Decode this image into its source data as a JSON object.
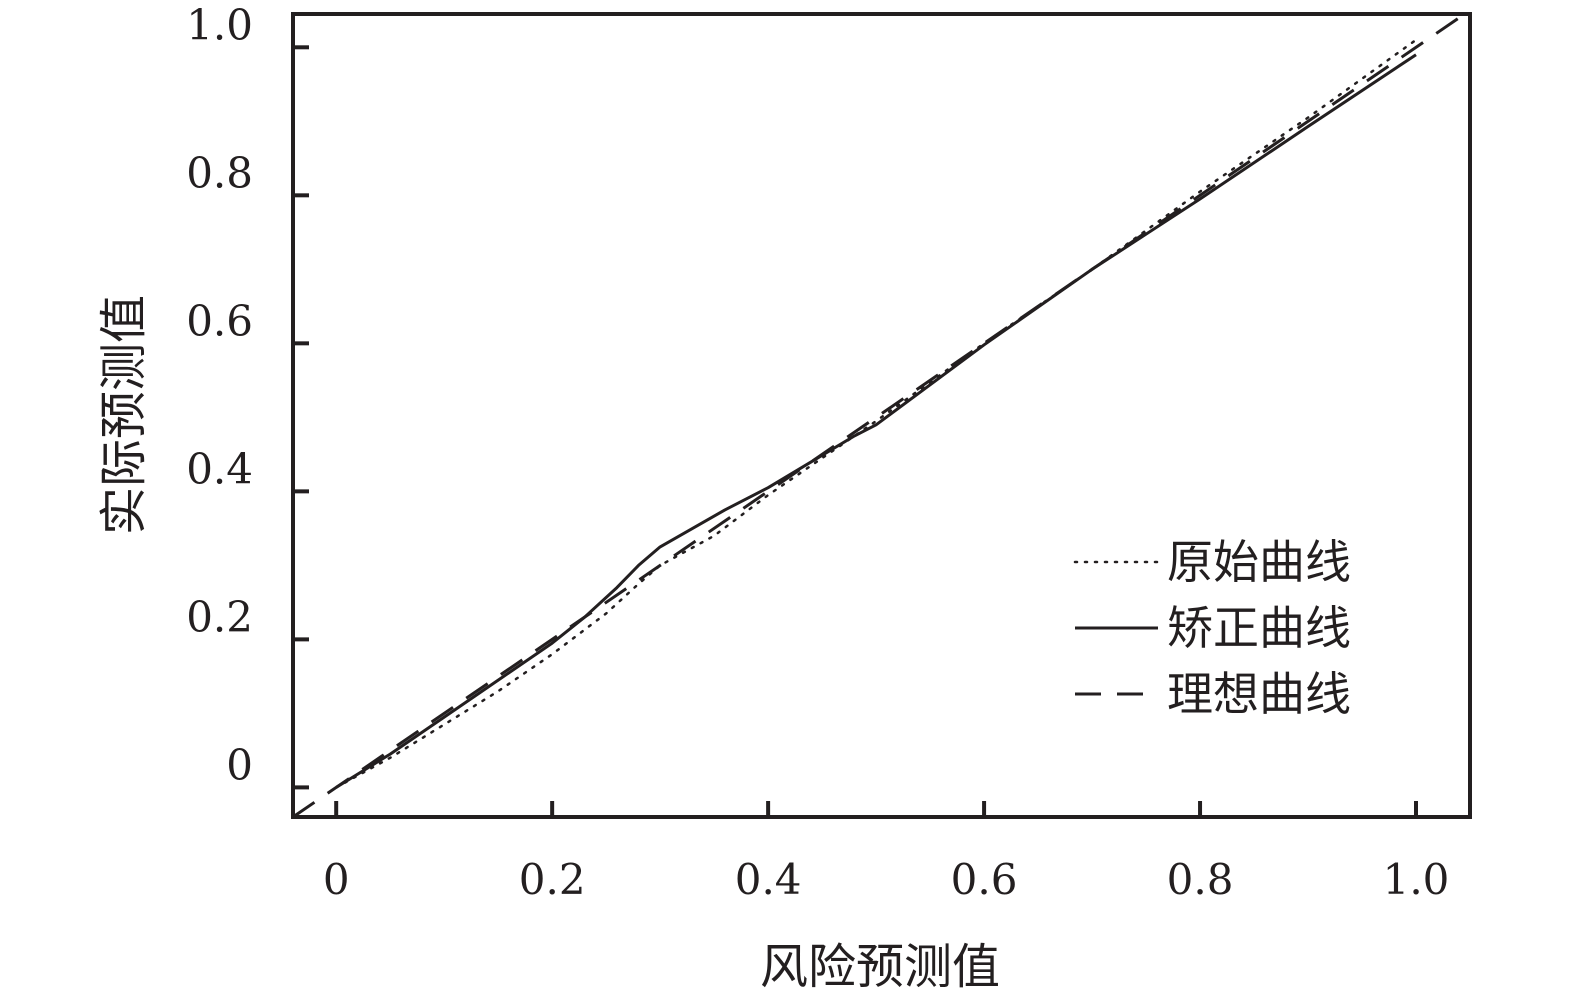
{
  "chart_data": {
    "type": "line",
    "title": "",
    "xlabel": "风险预测值",
    "ylabel": "实际预测值",
    "xlim": [
      -0.04,
      1.05
    ],
    "ylim": [
      -0.04,
      1.045
    ],
    "xticks": [
      0,
      0.2,
      0.4,
      0.6,
      0.8,
      1.0
    ],
    "xtick_labels": [
      "0",
      "0.2",
      "0.4",
      "0.6",
      "0.8",
      "1.0"
    ],
    "yticks": [
      0,
      0.2,
      0.4,
      0.6,
      0.8,
      1.0
    ],
    "ytick_labels": [
      "0",
      "0.2",
      "0.4",
      "0.6",
      "0.8",
      "1.0"
    ],
    "grid": false,
    "legend_position": "lower-right",
    "series": [
      {
        "name": "原始曲线",
        "style": "dotted",
        "color": "#231f20",
        "x": [
          0,
          0.05,
          0.1,
          0.15,
          0.2,
          0.25,
          0.28,
          0.3,
          0.35,
          0.4,
          0.45,
          0.5,
          0.6,
          0.7,
          0.8,
          0.9,
          1.0
        ],
        "y": [
          0,
          0.04,
          0.085,
          0.13,
          0.18,
          0.235,
          0.275,
          0.3,
          0.34,
          0.395,
          0.445,
          0.495,
          0.6,
          0.7,
          0.805,
          0.905,
          1.01
        ]
      },
      {
        "name": "矫正曲线",
        "style": "solid",
        "color": "#231f20",
        "x": [
          0,
          0.05,
          0.1,
          0.15,
          0.2,
          0.23,
          0.26,
          0.28,
          0.3,
          0.33,
          0.36,
          0.4,
          0.44,
          0.48,
          0.5,
          0.6,
          0.7,
          0.8,
          0.9,
          1.0
        ],
        "y": [
          0,
          0.045,
          0.095,
          0.145,
          0.195,
          0.23,
          0.27,
          0.3,
          0.325,
          0.35,
          0.375,
          0.405,
          0.44,
          0.475,
          0.49,
          0.598,
          0.7,
          0.795,
          0.893,
          0.99
        ]
      },
      {
        "name": "理想曲线",
        "style": "dashed",
        "color": "#231f20",
        "x": [
          -0.04,
          1.05
        ],
        "y": [
          -0.04,
          1.05
        ]
      }
    ]
  }
}
